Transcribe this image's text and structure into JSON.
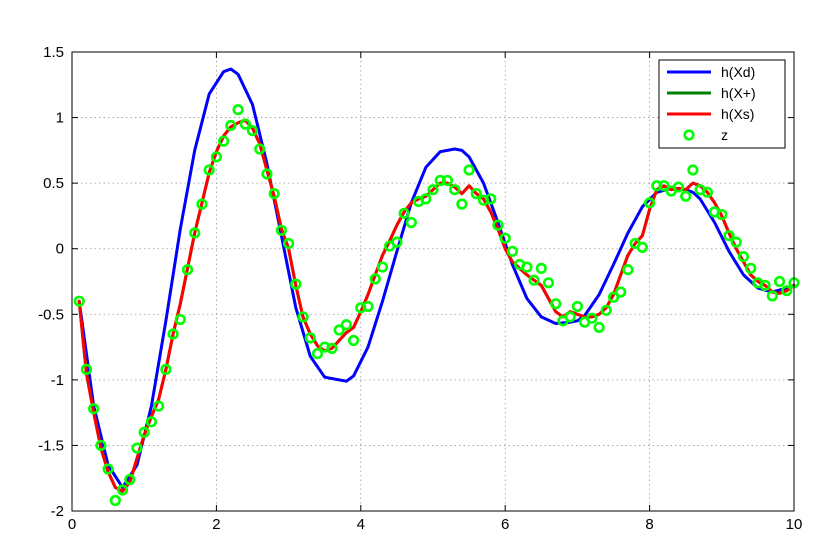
{
  "chart_data": {
    "type": "line",
    "title": "",
    "xlabel": "",
    "ylabel": "",
    "xlim": [
      0,
      10
    ],
    "ylim": [
      -2,
      1.5
    ],
    "xticks": [
      0,
      2,
      4,
      6,
      8,
      10
    ],
    "yticks": [
      -2,
      -1.5,
      -1,
      -0.5,
      0,
      0.5,
      1,
      1.5
    ],
    "xtick_labels": [
      "0",
      "2",
      "4",
      "6",
      "8",
      "10"
    ],
    "ytick_labels": [
      "-2",
      "-1.5",
      "-1",
      "-0.5",
      "0",
      "0.5",
      "1",
      "1.5"
    ],
    "grid": true,
    "legend_position": "top-right",
    "series": [
      {
        "name": "h(Xd)",
        "color": "#0000ff",
        "style": "line",
        "x": [
          0.1,
          0.3,
          0.5,
          0.7,
          0.9,
          1.1,
          1.3,
          1.5,
          1.7,
          1.9,
          2.1,
          2.2,
          2.3,
          2.5,
          2.7,
          2.9,
          3.1,
          3.3,
          3.5,
          3.7,
          3.8,
          3.9,
          4.1,
          4.3,
          4.5,
          4.7,
          4.9,
          5.1,
          5.3,
          5.4,
          5.5,
          5.7,
          5.9,
          6.1,
          6.3,
          6.5,
          6.7,
          6.9,
          7.0,
          7.1,
          7.3,
          7.5,
          7.7,
          7.9,
          8.1,
          8.3,
          8.5,
          8.6,
          8.7,
          8.9,
          9.1,
          9.3,
          9.5,
          9.7,
          9.9,
          10.0
        ],
        "y": [
          -0.4,
          -1.2,
          -1.65,
          -1.82,
          -1.65,
          -1.2,
          -0.55,
          0.15,
          0.75,
          1.18,
          1.35,
          1.37,
          1.33,
          1.1,
          0.65,
          0.1,
          -0.45,
          -0.82,
          -0.98,
          -1.0,
          -1.01,
          -0.97,
          -0.75,
          -0.4,
          -0.02,
          0.35,
          0.62,
          0.74,
          0.76,
          0.75,
          0.7,
          0.5,
          0.2,
          -0.12,
          -0.38,
          -0.52,
          -0.57,
          -0.56,
          -0.55,
          -0.51,
          -0.35,
          -0.12,
          0.12,
          0.32,
          0.43,
          0.46,
          0.45,
          0.43,
          0.38,
          0.2,
          -0.02,
          -0.2,
          -0.3,
          -0.33,
          -0.3,
          -0.28
        ]
      },
      {
        "name": "h(X+)",
        "color": "#008000",
        "style": "line",
        "x": [
          0.1,
          0.2,
          0.3,
          0.4,
          0.5,
          0.6,
          0.7,
          0.8,
          0.9,
          1.0,
          1.1,
          1.2,
          1.3,
          1.4,
          1.5,
          1.6,
          1.7,
          1.8,
          1.9,
          2.0,
          2.1,
          2.2,
          2.3,
          2.4,
          2.5,
          2.6,
          2.7,
          2.8,
          2.9,
          3.0,
          3.1,
          3.2,
          3.3,
          3.4,
          3.5,
          3.6,
          3.7,
          3.8,
          3.9,
          4.0,
          4.1,
          4.2,
          4.3,
          4.4,
          4.5,
          4.6,
          4.7,
          4.8,
          4.9,
          5.0,
          5.1,
          5.2,
          5.3,
          5.4,
          5.5,
          5.6,
          5.7,
          5.8,
          5.9,
          6.0,
          6.1,
          6.2,
          6.3,
          6.4,
          6.5,
          6.6,
          6.7,
          6.8,
          6.9,
          7.0,
          7.1,
          7.2,
          7.3,
          7.4,
          7.5,
          7.6,
          7.7,
          7.8,
          7.9,
          8.0,
          8.1,
          8.2,
          8.3,
          8.4,
          8.5,
          8.6,
          8.7,
          8.8,
          8.9,
          9.0,
          9.1,
          9.2,
          9.3,
          9.4,
          9.5,
          9.6,
          9.7,
          9.8,
          9.9,
          10.0
        ],
        "y": [
          -0.4,
          -0.95,
          -1.25,
          -1.52,
          -1.7,
          -1.82,
          -1.85,
          -1.78,
          -1.6,
          -1.42,
          -1.28,
          -1.15,
          -0.92,
          -0.65,
          -0.42,
          -0.15,
          0.12,
          0.35,
          0.58,
          0.74,
          0.86,
          0.93,
          0.96,
          0.98,
          0.92,
          0.8,
          0.6,
          0.4,
          0.15,
          0.0,
          -0.28,
          -0.52,
          -0.65,
          -0.74,
          -0.78,
          -0.76,
          -0.7,
          -0.64,
          -0.6,
          -0.48,
          -0.35,
          -0.2,
          -0.05,
          0.06,
          0.18,
          0.28,
          0.35,
          0.38,
          0.4,
          0.45,
          0.5,
          0.5,
          0.47,
          0.42,
          0.48,
          0.42,
          0.38,
          0.28,
          0.15,
          0.0,
          -0.1,
          -0.15,
          -0.2,
          -0.24,
          -0.28,
          -0.38,
          -0.48,
          -0.52,
          -0.48,
          -0.5,
          -0.52,
          -0.52,
          -0.5,
          -0.45,
          -0.35,
          -0.2,
          -0.05,
          0.04,
          0.1,
          0.3,
          0.45,
          0.48,
          0.45,
          0.46,
          0.45,
          0.5,
          0.48,
          0.43,
          0.35,
          0.25,
          0.12,
          0.0,
          -0.1,
          -0.2,
          -0.25,
          -0.28,
          -0.33,
          -0.34,
          -0.32,
          -0.28
        ]
      },
      {
        "name": "h(Xs)",
        "color": "#ff0000",
        "style": "line",
        "x": [
          0.1,
          0.2,
          0.3,
          0.4,
          0.5,
          0.6,
          0.7,
          0.8,
          0.9,
          1.0,
          1.1,
          1.2,
          1.3,
          1.4,
          1.5,
          1.6,
          1.7,
          1.8,
          1.9,
          2.0,
          2.1,
          2.2,
          2.3,
          2.4,
          2.5,
          2.6,
          2.7,
          2.8,
          2.9,
          3.0,
          3.1,
          3.2,
          3.3,
          3.4,
          3.5,
          3.6,
          3.7,
          3.8,
          3.9,
          4.0,
          4.1,
          4.2,
          4.3,
          4.4,
          4.5,
          4.6,
          4.7,
          4.8,
          4.9,
          5.0,
          5.1,
          5.2,
          5.3,
          5.4,
          5.5,
          5.6,
          5.7,
          5.8,
          5.9,
          6.0,
          6.1,
          6.2,
          6.3,
          6.4,
          6.5,
          6.6,
          6.7,
          6.8,
          6.9,
          7.0,
          7.1,
          7.2,
          7.3,
          7.4,
          7.5,
          7.6,
          7.7,
          7.8,
          7.9,
          8.0,
          8.1,
          8.2,
          8.3,
          8.4,
          8.5,
          8.6,
          8.7,
          8.8,
          8.9,
          9.0,
          9.1,
          9.2,
          9.3,
          9.4,
          9.5,
          9.6,
          9.7,
          9.8,
          9.9,
          10.0
        ],
        "y": [
          -0.4,
          -0.95,
          -1.25,
          -1.52,
          -1.7,
          -1.82,
          -1.85,
          -1.78,
          -1.6,
          -1.42,
          -1.28,
          -1.15,
          -0.92,
          -0.65,
          -0.42,
          -0.15,
          0.12,
          0.35,
          0.58,
          0.74,
          0.86,
          0.93,
          0.96,
          0.98,
          0.92,
          0.8,
          0.6,
          0.4,
          0.15,
          0.0,
          -0.28,
          -0.52,
          -0.65,
          -0.74,
          -0.78,
          -0.76,
          -0.7,
          -0.64,
          -0.6,
          -0.48,
          -0.35,
          -0.2,
          -0.05,
          0.06,
          0.18,
          0.28,
          0.35,
          0.38,
          0.4,
          0.45,
          0.5,
          0.5,
          0.47,
          0.42,
          0.48,
          0.42,
          0.38,
          0.28,
          0.15,
          0.0,
          -0.1,
          -0.15,
          -0.2,
          -0.24,
          -0.28,
          -0.38,
          -0.48,
          -0.52,
          -0.48,
          -0.5,
          -0.52,
          -0.52,
          -0.5,
          -0.45,
          -0.35,
          -0.2,
          -0.05,
          0.04,
          0.1,
          0.3,
          0.45,
          0.48,
          0.45,
          0.46,
          0.45,
          0.5,
          0.48,
          0.43,
          0.35,
          0.25,
          0.12,
          0.0,
          -0.1,
          -0.2,
          -0.25,
          -0.28,
          -0.33,
          -0.34,
          -0.32,
          -0.28
        ]
      },
      {
        "name": "z",
        "color": "#00ff00",
        "style": "marker",
        "x": [
          0.1,
          0.2,
          0.3,
          0.4,
          0.5,
          0.6,
          0.7,
          0.8,
          0.9,
          1.0,
          1.1,
          1.2,
          1.3,
          1.4,
          1.5,
          1.6,
          1.7,
          1.8,
          1.9,
          2.0,
          2.1,
          2.2,
          2.3,
          2.4,
          2.5,
          2.6,
          2.7,
          2.8,
          2.9,
          3.0,
          3.1,
          3.2,
          3.3,
          3.4,
          3.5,
          3.6,
          3.7,
          3.8,
          3.9,
          4.0,
          4.1,
          4.2,
          4.3,
          4.4,
          4.5,
          4.6,
          4.7,
          4.8,
          4.9,
          5.0,
          5.1,
          5.2,
          5.3,
          5.4,
          5.5,
          5.6,
          5.7,
          5.8,
          5.9,
          6.0,
          6.1,
          6.2,
          6.3,
          6.4,
          6.5,
          6.6,
          6.7,
          6.8,
          6.9,
          7.0,
          7.1,
          7.2,
          7.3,
          7.4,
          7.5,
          7.6,
          7.7,
          7.8,
          7.9,
          8.0,
          8.1,
          8.2,
          8.3,
          8.4,
          8.5,
          8.6,
          8.7,
          8.8,
          8.9,
          9.0,
          9.1,
          9.2,
          9.3,
          9.4,
          9.5,
          9.6,
          9.7,
          9.8,
          9.9,
          10.0
        ],
        "y": [
          -0.4,
          -0.92,
          -1.22,
          -1.5,
          -1.68,
          -1.92,
          -1.84,
          -1.76,
          -1.52,
          -1.4,
          -1.32,
          -1.2,
          -0.92,
          -0.65,
          -0.54,
          -0.16,
          0.12,
          0.34,
          0.6,
          0.7,
          0.82,
          0.94,
          1.06,
          0.95,
          0.9,
          0.76,
          0.57,
          0.42,
          0.14,
          0.04,
          -0.27,
          -0.52,
          -0.68,
          -0.8,
          -0.75,
          -0.76,
          -0.62,
          -0.58,
          -0.7,
          -0.45,
          -0.44,
          -0.23,
          -0.14,
          0.02,
          0.05,
          0.27,
          0.2,
          0.36,
          0.38,
          0.45,
          0.52,
          0.52,
          0.45,
          0.34,
          0.6,
          0.42,
          0.37,
          0.38,
          0.18,
          0.08,
          -0.02,
          -0.12,
          -0.14,
          -0.24,
          -0.15,
          -0.26,
          -0.42,
          -0.55,
          -0.52,
          -0.44,
          -0.56,
          -0.53,
          -0.6,
          -0.47,
          -0.37,
          -0.33,
          -0.16,
          0.04,
          0.01,
          0.35,
          0.48,
          0.48,
          0.44,
          0.47,
          0.4,
          0.6,
          0.45,
          0.43,
          0.28,
          0.26,
          0.1,
          0.05,
          -0.06,
          -0.15,
          -0.26,
          -0.28,
          -0.36,
          -0.25,
          -0.32,
          -0.26
        ]
      }
    ]
  }
}
